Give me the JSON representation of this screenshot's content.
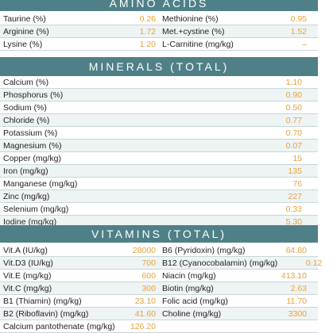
{
  "amino": {
    "title": "AMINO ACIDS",
    "rows": [
      {
        "l1": "Taurine (%)",
        "v1": "0.26",
        "l2": "Methionine (%)",
        "v2": "0.95"
      },
      {
        "l1": "Arginine (%)",
        "v1": "1.72",
        "l2": "Met.+cystine (%)",
        "v2": "1.52"
      },
      {
        "l1": "Lysine (%)",
        "v1": "1.20",
        "l2": "L-Carnitine (mg/kg)",
        "v2": "–"
      }
    ]
  },
  "minerals": {
    "title": "MINERALS (TOTAL)",
    "rows": [
      {
        "label": "Calcium (%)",
        "value": "1.10"
      },
      {
        "label": "Phosphorus (%)",
        "value": "0.90"
      },
      {
        "label": "Sodium (%)",
        "value": "0.50"
      },
      {
        "label": "Chloride (%)",
        "value": "0.77"
      },
      {
        "label": "Potassium (%)",
        "value": "0.70"
      },
      {
        "label": "Magnesium (%)",
        "value": "0.07"
      },
      {
        "label": "Copper (mg/kg)",
        "value": "15"
      },
      {
        "label": "Iron (mg/kg)",
        "value": "135"
      },
      {
        "label": "Manganese (mg/kg)",
        "value": "76"
      },
      {
        "label": "Zinc (mg/kg)",
        "value": "227"
      },
      {
        "label": "Selenium (mg/kg)",
        "value": "0.33"
      },
      {
        "label": "Iodine (mg/kg)",
        "value": "5.30"
      }
    ]
  },
  "vitamins": {
    "title": "VITAMINS (TOTAL)",
    "rows": [
      {
        "l1": "Vit.A (IU/kg)",
        "v1": "28000",
        "l2": "B6 (Pyridoxin) (mg/kg)",
        "v2": "64.80"
      },
      {
        "l1": "Vit.D3 (IU/kg)",
        "v1": "700",
        "l2": "B12 (Cyanocobalamin) (mg/kg)",
        "v2": "0.12"
      },
      {
        "l1": "Vit.E (mg/kg)",
        "v1": "600",
        "l2": "Niacin (mg/kg)",
        "v2": "413.10"
      },
      {
        "l1": "Vit.C (mg/kg)",
        "v1": "300",
        "l2": "Biotin (mg/kg)",
        "v2": "2.63"
      },
      {
        "l1": "B1 (Thiamin) (mg/kg)",
        "v1": "23.10",
        "l2": "Folic acid (mg/kg)",
        "v2": "11.70"
      },
      {
        "l1": "B2 (Riboflavin) (mg/kg)",
        "v1": "41.60",
        "l2": "Choline (mg/kg)",
        "v2": "3300"
      },
      {
        "l1": "Calcium pantothenate (mg/kg)",
        "v1": "126.20",
        "l2": "",
        "v2": ""
      }
    ]
  }
}
